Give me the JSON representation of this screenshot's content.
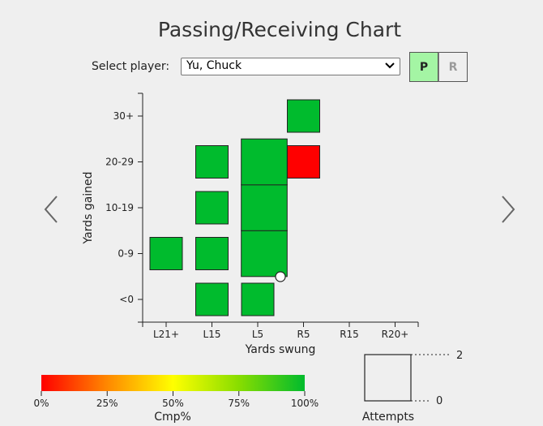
{
  "header": {
    "title": "Passing/Receiving Chart"
  },
  "controls": {
    "select_label": "Select player:",
    "selected_player": "Yu, Chuck",
    "mode_p_label": "P",
    "mode_r_label": "R",
    "active_mode": "P"
  },
  "icons": {
    "prev": "chevron-left-icon",
    "next": "chevron-right-icon",
    "dropdown": "chevron-down-icon"
  },
  "colors": {
    "background": "#efefef",
    "cell_green": "#00bb2d",
    "cell_red": "#ff0000",
    "active_mode_bg": "#a4f5a4"
  },
  "chart_data": {
    "type": "heatmap",
    "xlabel": "Yards swung",
    "ylabel": "Yards gained",
    "x_categories": [
      "L21+",
      "L15",
      "L5",
      "R5",
      "R15",
      "R20+"
    ],
    "y_categories": [
      "<0",
      "0-9",
      "10-19",
      "20-29",
      "30+"
    ],
    "cells": [
      {
        "x": "L21+",
        "y": "0-9",
        "attempts": 1,
        "cmp_pct": 100
      },
      {
        "x": "L15",
        "y": "<0",
        "attempts": 1,
        "cmp_pct": 100
      },
      {
        "x": "L15",
        "y": "0-9",
        "attempts": 1,
        "cmp_pct": 100
      },
      {
        "x": "L15",
        "y": "10-19",
        "attempts": 1,
        "cmp_pct": 100
      },
      {
        "x": "L15",
        "y": "20-29",
        "attempts": 1,
        "cmp_pct": 100
      },
      {
        "x": "L5",
        "y": "<0",
        "attempts": 1,
        "cmp_pct": 100
      },
      {
        "x": "L5",
        "y": "0-9",
        "attempts": 2,
        "cmp_pct": 100
      },
      {
        "x": "L5",
        "y": "10-19",
        "attempts": 2,
        "cmp_pct": 100
      },
      {
        "x": "L5",
        "y": "20-29",
        "attempts": 2,
        "cmp_pct": 100
      },
      {
        "x": "R5",
        "y": "20-29",
        "attempts": 1,
        "cmp_pct": 0
      },
      {
        "x": "R5",
        "y": "30+",
        "attempts": 1,
        "cmp_pct": 100
      }
    ],
    "color_legend": {
      "title": "Cmp%",
      "ticks": [
        "0%",
        "25%",
        "50%",
        "75%",
        "100%"
      ],
      "stops": [
        "#ff0000",
        "#ff8800",
        "#ffff00",
        "#88dd00",
        "#00bb2d"
      ]
    },
    "size_legend": {
      "title": "Attempts",
      "max_label": "2",
      "min_label": "0"
    }
  }
}
